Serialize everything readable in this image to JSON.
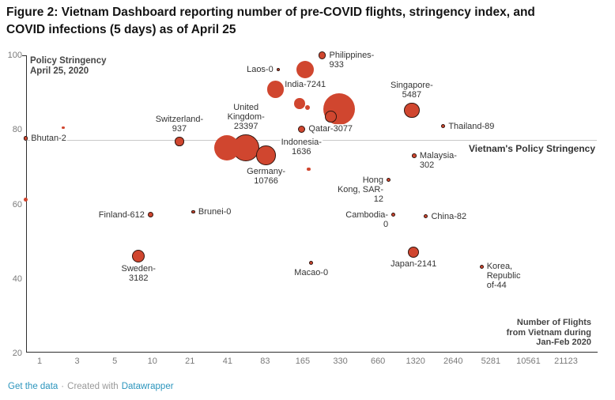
{
  "title": "Figure 2: Vietnam Dashboard reporting number of pre-COVID flights, stringency index, and COVID infections (5 days) as of April 25",
  "footer": {
    "link1": "Get the data",
    "sep": "·",
    "credit": "Created with",
    "link2": "Datawrapper"
  },
  "chart_data": {
    "type": "scatter",
    "title": "Figure 2: Vietnam Dashboard reporting number of pre-COVID flights, stringency index, and COVID infections (5 days) as of April 25",
    "x_axis": {
      "title_lines": [
        "Number of Flights",
        "from Vietnam during",
        "Jan-Feb 2020"
      ],
      "scale": "log",
      "ticks": [
        1,
        3,
        5,
        10,
        21,
        41,
        83,
        165,
        330,
        660,
        1320,
        2640,
        5281,
        10561,
        21123
      ]
    },
    "y_axis": {
      "title_lines": [
        "Policy Stringency",
        "April 25, 2020"
      ],
      "ticks": [
        100,
        80,
        60,
        40,
        20
      ],
      "range": [
        20,
        100
      ],
      "grid": false
    },
    "reference_line": {
      "value": 77,
      "label": "Vietnam's Policy Stringency"
    },
    "bubble_size_meaning": "COVID infections (5 days)",
    "points": [
      {
        "name": "bhutan",
        "country": "Bhutan",
        "label": "Bhutan-2",
        "infections": 2,
        "flights": 1,
        "stringency": 77.7,
        "r": 2.7,
        "outline": true,
        "label_pos": "right",
        "label_lines": [
          "Bhutan-2"
        ]
      },
      {
        "name": "switzerland",
        "country": "Switzerland",
        "label": "Switzerland-937",
        "infections": 937,
        "flights": 17,
        "stringency": 76.9,
        "r": 5.7,
        "outline": true,
        "label_pos": "above",
        "label_lines": [
          "Switzerland-",
          "937"
        ]
      },
      {
        "name": "finland",
        "country": "Finland",
        "label": "Finland-612",
        "infections": 612,
        "flights": 10,
        "stringency": 57.2,
        "r": 3.7,
        "outline": true,
        "label_pos": "left",
        "label_lines": [
          "Finland-612"
        ]
      },
      {
        "name": "sweden",
        "country": "Sweden",
        "label": "Sweden-3182",
        "infections": 3182,
        "flights": 8,
        "stringency": 46.2,
        "r": 8,
        "outline": true,
        "label_pos": "below",
        "label_lines": [
          "Sweden-",
          "3182"
        ]
      },
      {
        "name": "brunei",
        "country": "Brunei",
        "label": "Brunei-0",
        "infections": 0,
        "flights": 22,
        "stringency": 58,
        "r": 2.2,
        "outline": true,
        "label_pos": "right",
        "label_lines": [
          "Brunei-0"
        ]
      },
      {
        "name": "laos",
        "country": "Laos",
        "label": "Laos-0",
        "infections": 0,
        "flights": 105,
        "stringency": 96.2,
        "r": 2.2,
        "outline": true,
        "label_pos": "left",
        "label_lines": [
          "Laos-0"
        ]
      },
      {
        "name": "india",
        "country": "India",
        "label": "India-7241",
        "infections": 7241,
        "flights": 173,
        "stringency": 96.1,
        "r": 11,
        "outline": false,
        "label_pos": "below",
        "label_lines": [
          "India-7241"
        ]
      },
      {
        "name": "philippines",
        "country": "Philippines",
        "label": "Philippines-933",
        "infections": 933,
        "flights": 237,
        "stringency": 100,
        "r": 4.7,
        "outline": true,
        "label_pos": "right",
        "label_lines": [
          "Philippines-",
          "933"
        ]
      },
      {
        "name": "united-kingdom",
        "country": "United Kingdom",
        "label": "United Kingdom-23397",
        "infections": 23397,
        "flights": 58,
        "stringency": 75.2,
        "r": 17.3,
        "outline": true,
        "label_pos": "above",
        "label_lines": [
          "United",
          "Kingdom-",
          "23397"
        ]
      },
      {
        "name": "germany",
        "country": "Germany",
        "label": "Germany-10766",
        "infections": 10766,
        "flights": 84,
        "stringency": 73.2,
        "r": 12.3,
        "outline": true,
        "label_pos": "below",
        "label_lines": [
          "Germany-",
          "10766"
        ]
      },
      {
        "name": "indonesia",
        "country": "Indonesia",
        "label": "Indonesia-1636",
        "infections": 1636,
        "flights": 161,
        "stringency": 80.2,
        "r": 4.7,
        "outline": true,
        "label_pos": "below",
        "label_dy": 4,
        "label_lines": [
          "Indonesia-",
          "1636"
        ]
      },
      {
        "name": "qatar",
        "country": "Qatar",
        "label": "Qatar-3077",
        "infections": 3077,
        "flights": 276,
        "stringency": 83.5,
        "r": 7.3,
        "outline": true,
        "label_pos": "below",
        "label_lines": [
          "Qatar-3077"
        ]
      },
      {
        "name": "singapore",
        "country": "Singapore",
        "label": "Singapore-5487",
        "infections": 5487,
        "flights": 1232,
        "stringency": 85.3,
        "r": 9.7,
        "outline": true,
        "label_pos": "above",
        "label_lines": [
          "Singapore-",
          "5487"
        ]
      },
      {
        "name": "thailand",
        "country": "Thailand",
        "label": "Thailand-89",
        "infections": 89,
        "flights": 2204,
        "stringency": 81,
        "r": 2.5,
        "outline": true,
        "label_pos": "right",
        "label_lines": [
          "Thailand-89"
        ]
      },
      {
        "name": "malaysia",
        "country": "Malaysia",
        "label": "Malaysia-302",
        "infections": 302,
        "flights": 1290,
        "stringency": 73.1,
        "r": 2.8,
        "outline": true,
        "label_pos": "right",
        "label_lines": [
          "Malaysia-",
          "302"
        ]
      },
      {
        "name": "hong-kong",
        "country": "Hong Kong, SAR",
        "label": "Hong Kong, SAR-12",
        "infections": 12,
        "flights": 803,
        "stringency": 66.5,
        "r": 2.5,
        "outline": true,
        "label_pos": "left",
        "label_lines": [
          "Hong",
          "Kong, SAR-",
          "12"
        ]
      },
      {
        "name": "cambodia",
        "country": "Cambodia",
        "label": "Cambodia-0",
        "infections": 0,
        "flights": 877,
        "stringency": 57.2,
        "r": 2.5,
        "outline": true,
        "label_pos": "left",
        "label_lines": [
          "Cambodia-",
          "0"
        ]
      },
      {
        "name": "china",
        "country": "China",
        "label": "China-82",
        "infections": 82,
        "flights": 1603,
        "stringency": 56.8,
        "r": 2.5,
        "outline": true,
        "label_pos": "right",
        "label_lines": [
          "China-82"
        ]
      },
      {
        "name": "japan",
        "country": "Japan",
        "label": "Japan-2141",
        "infections": 2141,
        "flights": 1273,
        "stringency": 47.2,
        "r": 7,
        "outline": true,
        "label_pos": "below",
        "label_lines": [
          "Japan-2141"
        ]
      },
      {
        "name": "korea",
        "country": "Korea, Republic of",
        "label": "Korea, Republic of-44",
        "infections": 44,
        "flights": 4460,
        "stringency": 43.3,
        "r": 2.5,
        "outline": true,
        "label_pos": "right",
        "label_lines": [
          "Korea,",
          "Republic",
          "of-44"
        ]
      },
      {
        "name": "macao",
        "country": "Macao",
        "label": "Macao-0",
        "infections": 0,
        "flights": 193,
        "stringency": 44.4,
        "r": 2.5,
        "outline": true,
        "label_pos": "below",
        "label_dy": 2,
        "label_lines": [
          "Macao-0"
        ]
      },
      {
        "name": "unlabeled-1",
        "country": "",
        "label": "",
        "flights": 2,
        "stringency": 80.6,
        "r": 1.8,
        "outline": false
      },
      {
        "name": "unlabeled-2",
        "country": "",
        "label": "",
        "flights": 1,
        "stringency": 61.3,
        "r": 2.8,
        "outline": false
      },
      {
        "name": "unlabeled-3",
        "country": "",
        "label": "",
        "flights": 100,
        "stringency": 90.9,
        "r": 10.7,
        "outline": false
      },
      {
        "name": "unlabeled-4",
        "country": "",
        "label": "",
        "flights": 156,
        "stringency": 87.1,
        "r": 6.7,
        "outline": false
      },
      {
        "name": "unlabeled-5",
        "country": "",
        "label": "",
        "flights": 181,
        "stringency": 86,
        "r": 3,
        "outline": false
      },
      {
        "name": "unlabeled-6",
        "country": "",
        "label": "",
        "flights": 323,
        "stringency": 85.5,
        "r": 20,
        "outline": false
      },
      {
        "name": "unlabeled-7",
        "country": "",
        "label": "",
        "flights": 184,
        "stringency": 69.5,
        "r": 2.2,
        "outline": false
      },
      {
        "name": "unlabeled-8",
        "country": "",
        "label": "",
        "flights": 41,
        "stringency": 75.2,
        "r": 16,
        "outline": false
      }
    ],
    "colors": {
      "bubble_fill": "#d0462f",
      "bubble_outline": "#30150f",
      "reference_line": "#c9c9c9",
      "axis": "#2e2e2e",
      "tick_label": "#7a7a7a",
      "point_label": "#333333",
      "title": "#141414",
      "axis_title": "#454545",
      "link": "#2b95bd"
    }
  }
}
